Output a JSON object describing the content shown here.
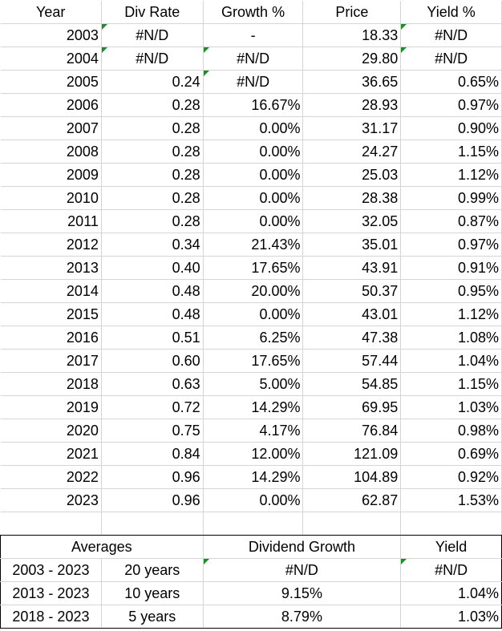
{
  "headers": [
    "Year",
    "Div Rate",
    "Growth %",
    "Price",
    "Yield %"
  ],
  "rows": [
    {
      "year": "2003",
      "div": "#N/D",
      "growth": "-",
      "price": "18.33",
      "yield": "#N/D"
    },
    {
      "year": "2004",
      "div": "#N/D",
      "growth": "#N/D",
      "price": "29.80",
      "yield": "#N/D"
    },
    {
      "year": "2005",
      "div": "0.24",
      "growth": "#N/D",
      "price": "36.65",
      "yield": "0.65%"
    },
    {
      "year": "2006",
      "div": "0.28",
      "growth": "16.67%",
      "price": "28.93",
      "yield": "0.97%"
    },
    {
      "year": "2007",
      "div": "0.28",
      "growth": "0.00%",
      "price": "31.17",
      "yield": "0.90%"
    },
    {
      "year": "2008",
      "div": "0.28",
      "growth": "0.00%",
      "price": "24.27",
      "yield": "1.15%"
    },
    {
      "year": "2009",
      "div": "0.28",
      "growth": "0.00%",
      "price": "25.03",
      "yield": "1.12%"
    },
    {
      "year": "2010",
      "div": "0.28",
      "growth": "0.00%",
      "price": "28.38",
      "yield": "0.99%"
    },
    {
      "year": "2011",
      "div": "0.28",
      "growth": "0.00%",
      "price": "32.05",
      "yield": "0.87%"
    },
    {
      "year": "2012",
      "div": "0.34",
      "growth": "21.43%",
      "price": "35.01",
      "yield": "0.97%"
    },
    {
      "year": "2013",
      "div": "0.40",
      "growth": "17.65%",
      "price": "43.91",
      "yield": "0.91%"
    },
    {
      "year": "2014",
      "div": "0.48",
      "growth": "20.00%",
      "price": "50.37",
      "yield": "0.95%"
    },
    {
      "year": "2015",
      "div": "0.48",
      "growth": "0.00%",
      "price": "43.01",
      "yield": "1.12%"
    },
    {
      "year": "2016",
      "div": "0.51",
      "growth": "6.25%",
      "price": "47.38",
      "yield": "1.08%"
    },
    {
      "year": "2017",
      "div": "0.60",
      "growth": "17.65%",
      "price": "57.44",
      "yield": "1.04%"
    },
    {
      "year": "2018",
      "div": "0.63",
      "growth": "5.00%",
      "price": "54.85",
      "yield": "1.15%"
    },
    {
      "year": "2019",
      "div": "0.72",
      "growth": "14.29%",
      "price": "69.95",
      "yield": "1.03%"
    },
    {
      "year": "2020",
      "div": "0.75",
      "growth": "4.17%",
      "price": "76.84",
      "yield": "0.98%"
    },
    {
      "year": "2021",
      "div": "0.84",
      "growth": "12.00%",
      "price": "121.09",
      "yield": "0.69%"
    },
    {
      "year": "2022",
      "div": "0.96",
      "growth": "14.29%",
      "price": "104.89",
      "yield": "0.92%"
    },
    {
      "year": "2023",
      "div": "0.96",
      "growth": "0.00%",
      "price": "62.87",
      "yield": "1.53%"
    }
  ],
  "summary": {
    "headers": {
      "averages": "Averages",
      "growth": "Dividend Growth",
      "yield": "Yield"
    },
    "rows": [
      {
        "range": "2003 - 2023",
        "span": "20 years",
        "growth": "#N/D",
        "yield": "#N/D"
      },
      {
        "range": "2013 - 2023",
        "span": "10 years",
        "growth": "9.15%",
        "yield": "1.04%"
      },
      {
        "range": "2018 - 2023",
        "span": "5 years",
        "growth": "8.79%",
        "yield": "1.03%"
      }
    ]
  },
  "colors": {
    "error_flag": "#1e8c2a",
    "gridline": "#d4d4d4"
  }
}
